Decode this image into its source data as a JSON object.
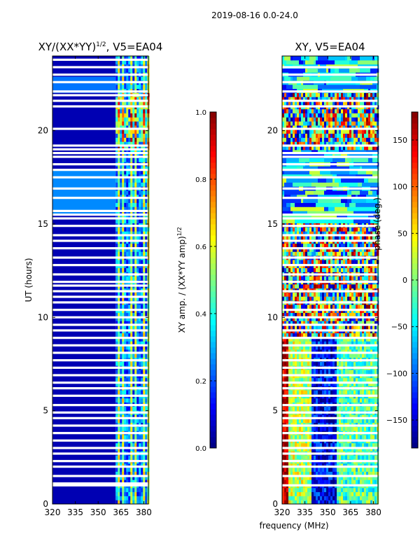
{
  "figure": {
    "suptitle": "2019-08-16 0.0-24.0",
    "shared_xlabel": "frequency (MHz)"
  },
  "chart_data": [
    {
      "type": "heatmap",
      "title": "XY/(XX*YY)",
      "title_superscript": "1/2",
      "title_suffix": ", V5=EA04",
      "xlabel": "",
      "ylabel": "UT (hours)",
      "xlim": [
        320,
        383
      ],
      "ylim": [
        0,
        24
      ],
      "xticks": [
        320,
        335,
        350,
        365,
        380
      ],
      "yticks": [
        0,
        5,
        10,
        15,
        20
      ],
      "colormap": "jet",
      "colorbar": {
        "label": "XY amp. / (XX*YY amp)",
        "label_superscript": "1/2",
        "range": [
          0.0,
          1.0
        ],
        "ticks": [
          "0.0",
          "0.2",
          "0.4",
          "0.6",
          "0.8",
          "1.0"
        ]
      },
      "band_edge_mhz": 361.5,
      "blank_rows_ut": [
        1.0,
        1.1,
        1.5,
        2.0,
        2.3,
        2.7,
        3.0,
        3.4,
        3.8,
        4.2,
        4.6,
        4.9,
        5.3,
        5.8,
        6.2,
        6.5,
        6.9,
        7.3,
        7.7,
        8.1,
        8.5,
        8.9,
        9.3,
        9.6,
        10.0,
        10.4,
        10.8,
        11.1,
        11.4,
        11.7,
        11.9,
        12.3,
        12.8,
        13.2,
        13.7,
        14.1,
        14.4,
        14.9,
        15.3,
        15.5,
        15.7,
        16.4,
        16.9,
        17.5,
        17.9,
        18.2,
        18.6,
        18.8,
        19.0,
        19.2,
        20.1,
        21.3,
        21.6,
        21.9,
        22.1,
        22.6,
        23.0,
        23.4,
        23.8
      ]
    },
    {
      "type": "heatmap",
      "title": "XY, V5=EA04",
      "xlabel": "",
      "ylabel": "",
      "xlim": [
        320,
        383
      ],
      "ylim": [
        0,
        24
      ],
      "xticks": [
        320,
        335,
        350,
        365,
        380
      ],
      "yticks": [
        0,
        5,
        10,
        15,
        20
      ],
      "colormap": "jet",
      "colorbar": {
        "label": "phase (deg.)",
        "range": [
          -180,
          180
        ],
        "ticks": [
          "−150",
          "−100",
          "−50",
          "0",
          "50",
          "100",
          "150"
        ]
      },
      "band_edge_mhz": 361.5,
      "blank_rows_ut": [
        1.0,
        1.5,
        2.0,
        2.3,
        2.7,
        3.0,
        3.4,
        3.8,
        4.2,
        4.6,
        4.9,
        5.3,
        5.8,
        6.2,
        6.5,
        6.9,
        7.3,
        7.7,
        8.1,
        8.5,
        8.9,
        9.3,
        9.6,
        10.0,
        10.4,
        10.8,
        11.4,
        11.9,
        12.3,
        12.8,
        13.2,
        13.7,
        14.1,
        14.4,
        14.9,
        15.3,
        15.5,
        16.4,
        16.9,
        17.5,
        17.9,
        18.2,
        18.6,
        18.8,
        19.2,
        20.1,
        21.3,
        21.6,
        22.1,
        22.6,
        23.0,
        23.4
      ]
    }
  ]
}
